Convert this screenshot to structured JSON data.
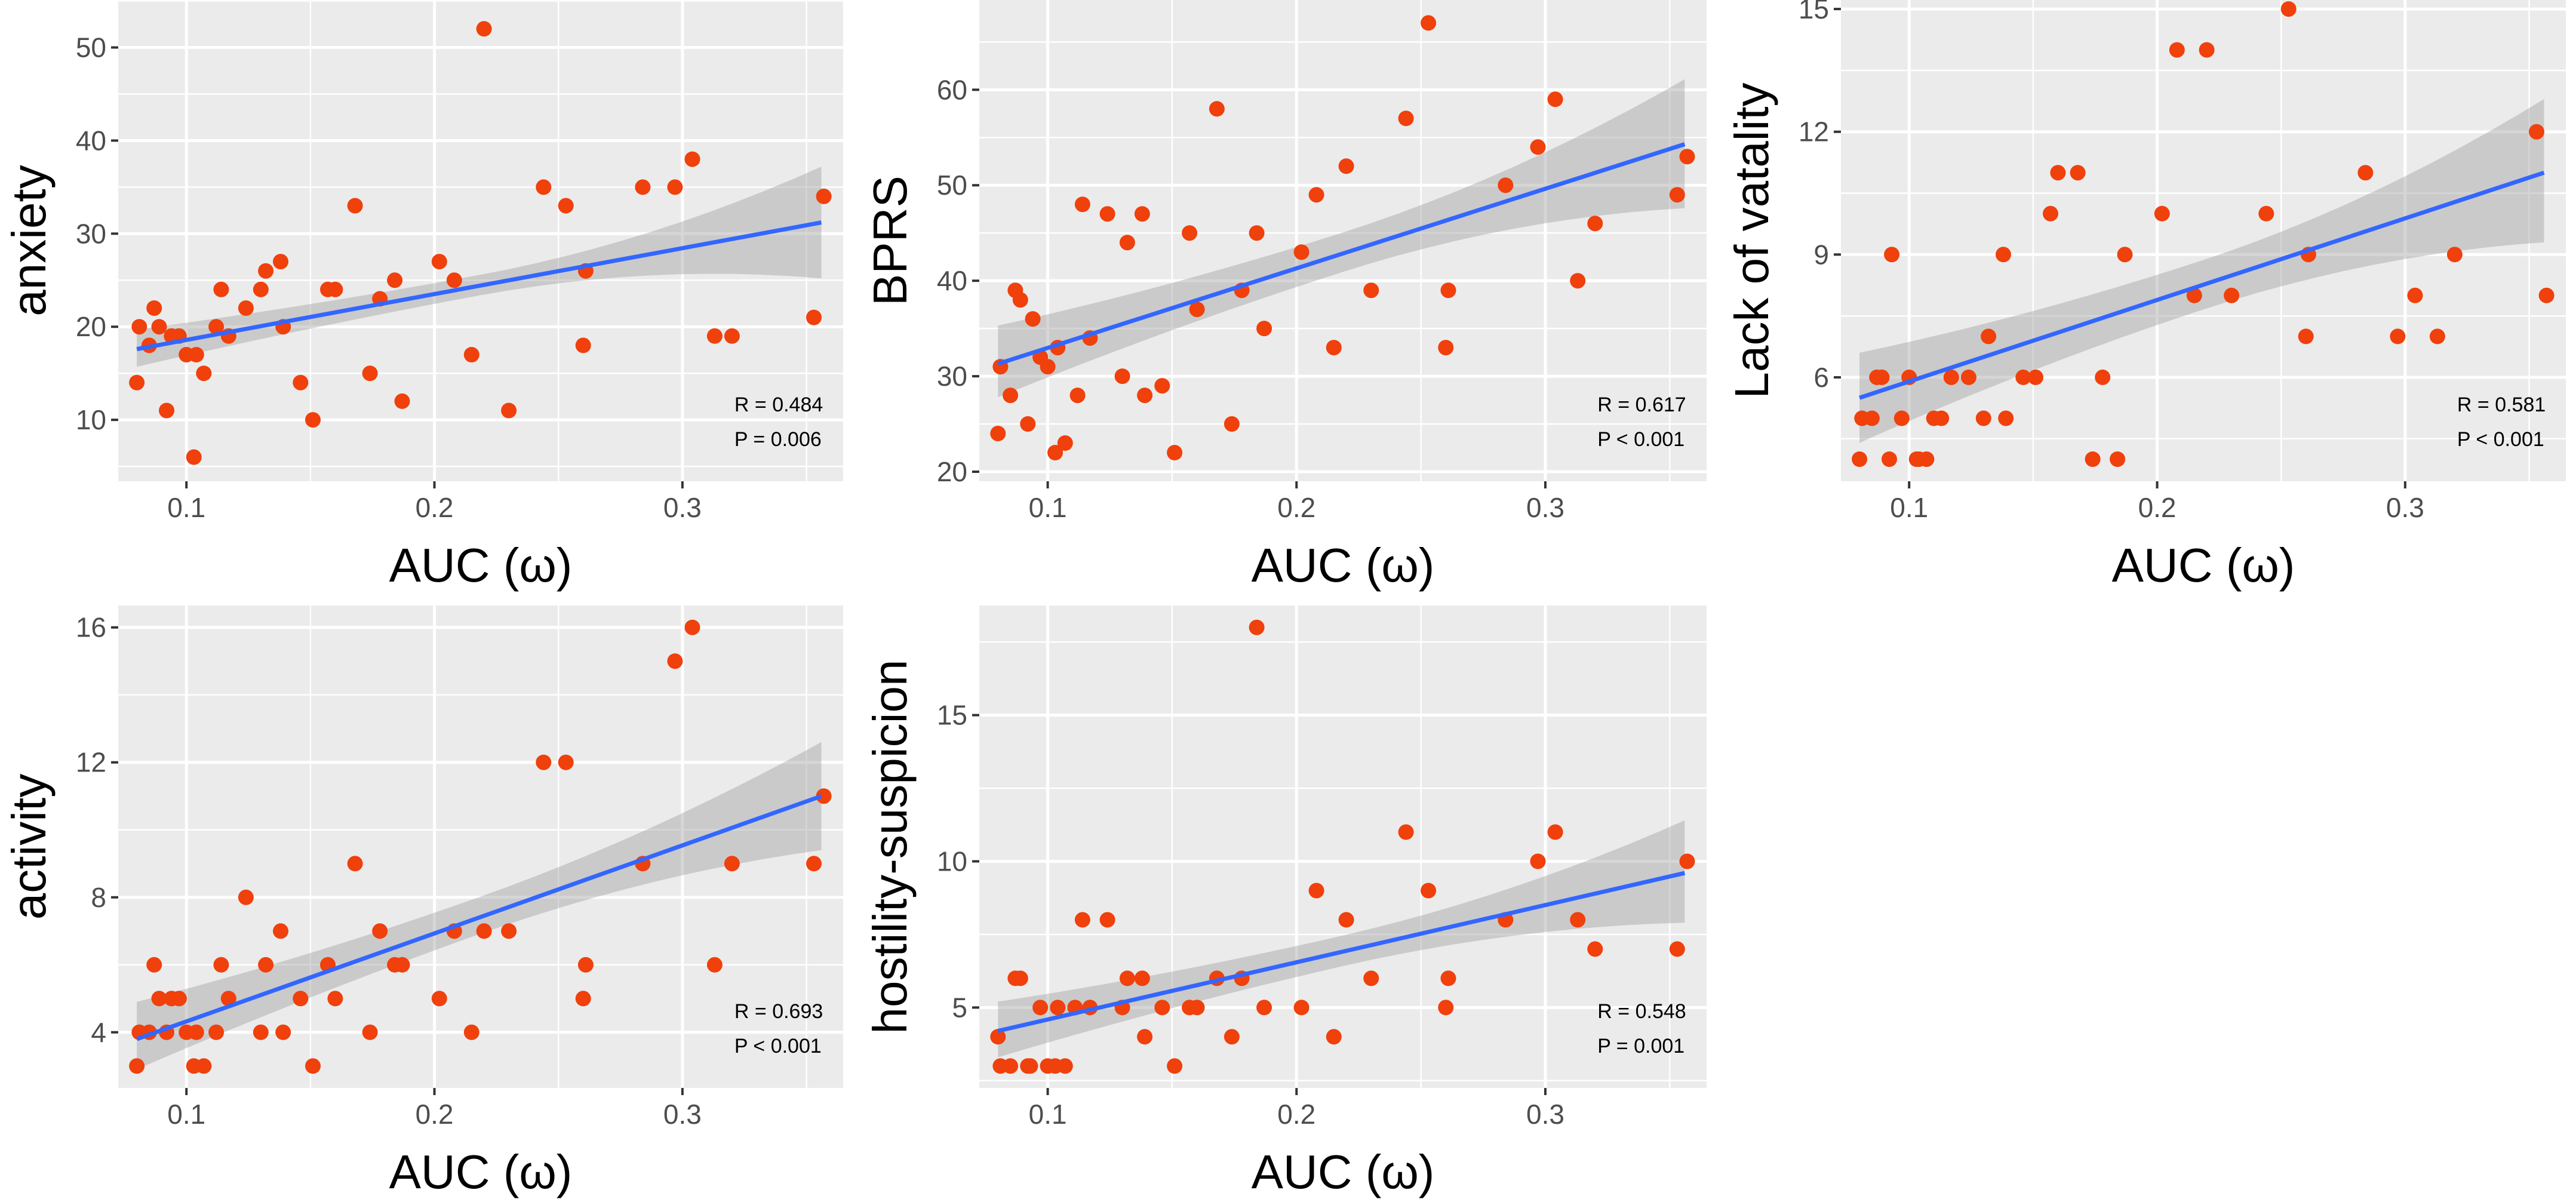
{
  "colors": {
    "panel": "#ebebeb",
    "grid": "#ffffff",
    "fit_line": "#3366ff",
    "confidence_band": "#999999",
    "points": "#f0400c",
    "text": "#000000",
    "tick_text": "#4d4d4d"
  },
  "chart_data": [
    {
      "type": "scatter",
      "title": "",
      "xlabel": "AUC (ω)",
      "ylabel": "anxiety",
      "xlim": [
        0.0725,
        0.3648
      ],
      "ylim": [
        3.4,
        55.1
      ],
      "xticks": [
        0.1,
        0.2,
        0.3
      ],
      "xtick_labels": [
        "0.1",
        "0.2",
        "0.3"
      ],
      "yticks": [
        10,
        20,
        30,
        40,
        50
      ],
      "ytick_labels": [
        "10",
        "20",
        "30",
        "40",
        "50"
      ],
      "annotation": [
        "R = 0.484",
        "P = 0.006"
      ],
      "fit": {
        "x": [
          0.08,
          0.356
        ],
        "y": [
          17.6,
          31.2
        ],
        "ci_lower": [
          15.7,
          25.2
        ],
        "ci_upper": [
          19.7,
          37.2
        ]
      },
      "points": [
        {
          "x": 0.08,
          "y": 14
        },
        {
          "x": 0.081,
          "y": 20
        },
        {
          "x": 0.085,
          "y": 18
        },
        {
          "x": 0.087,
          "y": 22
        },
        {
          "x": 0.089,
          "y": 20
        },
        {
          "x": 0.092,
          "y": 11
        },
        {
          "x": 0.094,
          "y": 19
        },
        {
          "x": 0.097,
          "y": 19
        },
        {
          "x": 0.1,
          "y": 17
        },
        {
          "x": 0.103,
          "y": 6
        },
        {
          "x": 0.104,
          "y": 17
        },
        {
          "x": 0.107,
          "y": 15
        },
        {
          "x": 0.112,
          "y": 20
        },
        {
          "x": 0.114,
          "y": 24
        },
        {
          "x": 0.117,
          "y": 19
        },
        {
          "x": 0.124,
          "y": 22
        },
        {
          "x": 0.13,
          "y": 24
        },
        {
          "x": 0.132,
          "y": 26
        },
        {
          "x": 0.138,
          "y": 27
        },
        {
          "x": 0.139,
          "y": 20
        },
        {
          "x": 0.146,
          "y": 14
        },
        {
          "x": 0.151,
          "y": 10
        },
        {
          "x": 0.157,
          "y": 24
        },
        {
          "x": 0.16,
          "y": 24
        },
        {
          "x": 0.168,
          "y": 33
        },
        {
          "x": 0.174,
          "y": 15
        },
        {
          "x": 0.178,
          "y": 23
        },
        {
          "x": 0.184,
          "y": 25
        },
        {
          "x": 0.187,
          "y": 12
        },
        {
          "x": 0.202,
          "y": 27
        },
        {
          "x": 0.208,
          "y": 25
        },
        {
          "x": 0.215,
          "y": 17
        },
        {
          "x": 0.22,
          "y": 52
        },
        {
          "x": 0.23,
          "y": 11
        },
        {
          "x": 0.244,
          "y": 35
        },
        {
          "x": 0.253,
          "y": 33
        },
        {
          "x": 0.26,
          "y": 18
        },
        {
          "x": 0.261,
          "y": 26
        },
        {
          "x": 0.284,
          "y": 35
        },
        {
          "x": 0.297,
          "y": 35
        },
        {
          "x": 0.304,
          "y": 38
        },
        {
          "x": 0.313,
          "y": 19
        },
        {
          "x": 0.32,
          "y": 19
        },
        {
          "x": 0.353,
          "y": 21
        },
        {
          "x": 0.357,
          "y": 34
        }
      ]
    },
    {
      "type": "scatter",
      "title": "",
      "xlabel": "AUC (ω)",
      "ylabel": "BPRS",
      "xlim": [
        0.0725,
        0.3648
      ],
      "ylim": [
        19.0,
        69.4
      ],
      "xticks": [
        0.1,
        0.2,
        0.3
      ],
      "xtick_labels": [
        "0.1",
        "0.2",
        "0.3"
      ],
      "yticks": [
        20,
        30,
        40,
        50,
        60
      ],
      "ytick_labels": [
        "20",
        "30",
        "40",
        "50",
        "60"
      ],
      "annotation": [
        "R = 0.617",
        "P < 0.001"
      ],
      "fit": {
        "x": [
          0.08,
          0.356
        ],
        "y": [
          31.3,
          54.3
        ],
        "ci_lower": [
          27.8,
          47.6
        ],
        "ci_upper": [
          35.3,
          61.1
        ]
      },
      "points": [
        {
          "x": 0.08,
          "y": 24
        },
        {
          "x": 0.081,
          "y": 31
        },
        {
          "x": 0.085,
          "y": 28
        },
        {
          "x": 0.087,
          "y": 39
        },
        {
          "x": 0.089,
          "y": 38
        },
        {
          "x": 0.092,
          "y": 25
        },
        {
          "x": 0.094,
          "y": 36
        },
        {
          "x": 0.097,
          "y": 32
        },
        {
          "x": 0.1,
          "y": 31
        },
        {
          "x": 0.103,
          "y": 22
        },
        {
          "x": 0.104,
          "y": 33
        },
        {
          "x": 0.107,
          "y": 23
        },
        {
          "x": 0.112,
          "y": 28
        },
        {
          "x": 0.114,
          "y": 48
        },
        {
          "x": 0.117,
          "y": 34
        },
        {
          "x": 0.124,
          "y": 47
        },
        {
          "x": 0.13,
          "y": 30
        },
        {
          "x": 0.132,
          "y": 44
        },
        {
          "x": 0.138,
          "y": 47
        },
        {
          "x": 0.139,
          "y": 28
        },
        {
          "x": 0.146,
          "y": 29
        },
        {
          "x": 0.151,
          "y": 22
        },
        {
          "x": 0.157,
          "y": 45
        },
        {
          "x": 0.16,
          "y": 37
        },
        {
          "x": 0.168,
          "y": 58
        },
        {
          "x": 0.174,
          "y": 25
        },
        {
          "x": 0.178,
          "y": 39
        },
        {
          "x": 0.184,
          "y": 45
        },
        {
          "x": 0.187,
          "y": 35
        },
        {
          "x": 0.202,
          "y": 43
        },
        {
          "x": 0.208,
          "y": 49
        },
        {
          "x": 0.215,
          "y": 33
        },
        {
          "x": 0.22,
          "y": 52
        },
        {
          "x": 0.23,
          "y": 39
        },
        {
          "x": 0.244,
          "y": 57
        },
        {
          "x": 0.253,
          "y": 67
        },
        {
          "x": 0.26,
          "y": 33
        },
        {
          "x": 0.261,
          "y": 39
        },
        {
          "x": 0.284,
          "y": 50
        },
        {
          "x": 0.297,
          "y": 54
        },
        {
          "x": 0.304,
          "y": 59
        },
        {
          "x": 0.313,
          "y": 40
        },
        {
          "x": 0.32,
          "y": 46
        },
        {
          "x": 0.353,
          "y": 49
        },
        {
          "x": 0.357,
          "y": 53
        }
      ]
    },
    {
      "type": "scatter",
      "title": "",
      "xlabel": "AUC (ω)",
      "ylabel": "Lack of vatality",
      "xlim": [
        0.0725,
        0.3648
      ],
      "ylim": [
        3.46,
        15.22
      ],
      "xticks": [
        0.1,
        0.2,
        0.3
      ],
      "xtick_labels": [
        "0.1",
        "0.2",
        "0.3"
      ],
      "yticks": [
        6,
        9,
        12,
        15
      ],
      "ytick_labels": [
        "6",
        "9",
        "12",
        "15"
      ],
      "annotation": [
        "R = 0.581",
        "P < 0.001"
      ],
      "fit": {
        "x": [
          0.08,
          0.356
        ],
        "y": [
          5.5,
          11.0
        ],
        "ci_lower": [
          4.4,
          9.3
        ],
        "ci_upper": [
          6.6,
          12.8
        ]
      },
      "points": [
        {
          "x": 0.08,
          "y": 4
        },
        {
          "x": 0.081,
          "y": 5
        },
        {
          "x": 0.085,
          "y": 5
        },
        {
          "x": 0.087,
          "y": 6
        },
        {
          "x": 0.089,
          "y": 6
        },
        {
          "x": 0.092,
          "y": 4
        },
        {
          "x": 0.093,
          "y": 9
        },
        {
          "x": 0.097,
          "y": 5
        },
        {
          "x": 0.1,
          "y": 6
        },
        {
          "x": 0.103,
          "y": 4
        },
        {
          "x": 0.104,
          "y": 4
        },
        {
          "x": 0.107,
          "y": 4
        },
        {
          "x": 0.11,
          "y": 5
        },
        {
          "x": 0.113,
          "y": 5
        },
        {
          "x": 0.117,
          "y": 6
        },
        {
          "x": 0.124,
          "y": 6
        },
        {
          "x": 0.13,
          "y": 5
        },
        {
          "x": 0.132,
          "y": 7
        },
        {
          "x": 0.138,
          "y": 9
        },
        {
          "x": 0.139,
          "y": 5
        },
        {
          "x": 0.146,
          "y": 6
        },
        {
          "x": 0.151,
          "y": 6
        },
        {
          "x": 0.157,
          "y": 10
        },
        {
          "x": 0.16,
          "y": 11
        },
        {
          "x": 0.168,
          "y": 11
        },
        {
          "x": 0.174,
          "y": 4
        },
        {
          "x": 0.178,
          "y": 6
        },
        {
          "x": 0.184,
          "y": 4
        },
        {
          "x": 0.187,
          "y": 9
        },
        {
          "x": 0.202,
          "y": 10
        },
        {
          "x": 0.208,
          "y": 14
        },
        {
          "x": 0.215,
          "y": 8
        },
        {
          "x": 0.22,
          "y": 14
        },
        {
          "x": 0.23,
          "y": 8
        },
        {
          "x": 0.244,
          "y": 10
        },
        {
          "x": 0.253,
          "y": 15
        },
        {
          "x": 0.26,
          "y": 7
        },
        {
          "x": 0.261,
          "y": 9
        },
        {
          "x": 0.284,
          "y": 11
        },
        {
          "x": 0.297,
          "y": 7
        },
        {
          "x": 0.304,
          "y": 8
        },
        {
          "x": 0.313,
          "y": 7
        },
        {
          "x": 0.32,
          "y": 9
        },
        {
          "x": 0.353,
          "y": 12
        },
        {
          "x": 0.357,
          "y": 8
        }
      ]
    },
    {
      "type": "scatter",
      "title": "",
      "xlabel": "AUC (ω)",
      "ylabel": "activity",
      "xlim": [
        0.0725,
        0.3648
      ],
      "ylim": [
        2.35,
        16.65
      ],
      "xticks": [
        0.1,
        0.2,
        0.3
      ],
      "xtick_labels": [
        "0.1",
        "0.2",
        "0.3"
      ],
      "yticks": [
        4,
        8,
        12,
        16
      ],
      "ytick_labels": [
        "4",
        "8",
        "12",
        "16"
      ],
      "annotation": [
        "R = 0.693",
        "P < 0.001"
      ],
      "fit": {
        "x": [
          0.08,
          0.356
        ],
        "y": [
          3.8,
          11.0
        ],
        "ci_lower": [
          2.9,
          9.4
        ],
        "ci_upper": [
          4.9,
          12.6
        ]
      },
      "points": [
        {
          "x": 0.08,
          "y": 3
        },
        {
          "x": 0.081,
          "y": 4
        },
        {
          "x": 0.085,
          "y": 4
        },
        {
          "x": 0.087,
          "y": 6
        },
        {
          "x": 0.089,
          "y": 5
        },
        {
          "x": 0.092,
          "y": 4
        },
        {
          "x": 0.094,
          "y": 5
        },
        {
          "x": 0.097,
          "y": 5
        },
        {
          "x": 0.1,
          "y": 4
        },
        {
          "x": 0.103,
          "y": 3
        },
        {
          "x": 0.104,
          "y": 4
        },
        {
          "x": 0.107,
          "y": 3
        },
        {
          "x": 0.112,
          "y": 4
        },
        {
          "x": 0.114,
          "y": 6
        },
        {
          "x": 0.117,
          "y": 5
        },
        {
          "x": 0.124,
          "y": 8
        },
        {
          "x": 0.13,
          "y": 4
        },
        {
          "x": 0.132,
          "y": 6
        },
        {
          "x": 0.138,
          "y": 7
        },
        {
          "x": 0.139,
          "y": 4
        },
        {
          "x": 0.146,
          "y": 5
        },
        {
          "x": 0.151,
          "y": 3
        },
        {
          "x": 0.157,
          "y": 6
        },
        {
          "x": 0.16,
          "y": 5
        },
        {
          "x": 0.168,
          "y": 9
        },
        {
          "x": 0.174,
          "y": 4
        },
        {
          "x": 0.178,
          "y": 7
        },
        {
          "x": 0.184,
          "y": 6
        },
        {
          "x": 0.187,
          "y": 6
        },
        {
          "x": 0.202,
          "y": 5
        },
        {
          "x": 0.208,
          "y": 7
        },
        {
          "x": 0.215,
          "y": 4
        },
        {
          "x": 0.22,
          "y": 7
        },
        {
          "x": 0.23,
          "y": 7
        },
        {
          "x": 0.244,
          "y": 12
        },
        {
          "x": 0.253,
          "y": 12
        },
        {
          "x": 0.26,
          "y": 5
        },
        {
          "x": 0.261,
          "y": 6
        },
        {
          "x": 0.284,
          "y": 9
        },
        {
          "x": 0.297,
          "y": 15
        },
        {
          "x": 0.304,
          "y": 16
        },
        {
          "x": 0.313,
          "y": 6
        },
        {
          "x": 0.32,
          "y": 9
        },
        {
          "x": 0.353,
          "y": 9
        },
        {
          "x": 0.357,
          "y": 11
        }
      ]
    },
    {
      "type": "scatter",
      "title": "",
      "xlabel": "AUC (ω)",
      "ylabel": "hostility-suspicion",
      "xlim": [
        0.0725,
        0.3648
      ],
      "ylim": [
        2.25,
        18.75
      ],
      "xticks": [
        0.1,
        0.2,
        0.3
      ],
      "xtick_labels": [
        "0.1",
        "0.2",
        "0.3"
      ],
      "yticks": [
        5,
        10,
        15
      ],
      "ytick_labels": [
        "5",
        "10",
        "15"
      ],
      "annotation": [
        "R = 0.548",
        "P = 0.001"
      ],
      "fit": {
        "x": [
          0.08,
          0.356
        ],
        "y": [
          4.2,
          9.6
        ],
        "ci_lower": [
          3.3,
          7.9
        ],
        "ci_upper": [
          5.2,
          11.4
        ]
      },
      "points": [
        {
          "x": 0.08,
          "y": 4
        },
        {
          "x": 0.081,
          "y": 3
        },
        {
          "x": 0.085,
          "y": 3
        },
        {
          "x": 0.087,
          "y": 6
        },
        {
          "x": 0.089,
          "y": 6
        },
        {
          "x": 0.092,
          "y": 3
        },
        {
          "x": 0.093,
          "y": 3
        },
        {
          "x": 0.097,
          "y": 5
        },
        {
          "x": 0.1,
          "y": 3
        },
        {
          "x": 0.103,
          "y": 3
        },
        {
          "x": 0.104,
          "y": 5
        },
        {
          "x": 0.107,
          "y": 3
        },
        {
          "x": 0.111,
          "y": 5
        },
        {
          "x": 0.114,
          "y": 8
        },
        {
          "x": 0.117,
          "y": 5
        },
        {
          "x": 0.124,
          "y": 8
        },
        {
          "x": 0.13,
          "y": 5
        },
        {
          "x": 0.132,
          "y": 6
        },
        {
          "x": 0.138,
          "y": 6
        },
        {
          "x": 0.139,
          "y": 4
        },
        {
          "x": 0.146,
          "y": 5
        },
        {
          "x": 0.151,
          "y": 3
        },
        {
          "x": 0.157,
          "y": 5
        },
        {
          "x": 0.16,
          "y": 5
        },
        {
          "x": 0.168,
          "y": 6
        },
        {
          "x": 0.174,
          "y": 4
        },
        {
          "x": 0.178,
          "y": 6
        },
        {
          "x": 0.184,
          "y": 18
        },
        {
          "x": 0.187,
          "y": 5
        },
        {
          "x": 0.202,
          "y": 5
        },
        {
          "x": 0.208,
          "y": 9
        },
        {
          "x": 0.215,
          "y": 4
        },
        {
          "x": 0.22,
          "y": 8
        },
        {
          "x": 0.23,
          "y": 6
        },
        {
          "x": 0.244,
          "y": 11
        },
        {
          "x": 0.253,
          "y": 9
        },
        {
          "x": 0.26,
          "y": 5
        },
        {
          "x": 0.261,
          "y": 6
        },
        {
          "x": 0.284,
          "y": 8
        },
        {
          "x": 0.297,
          "y": 10
        },
        {
          "x": 0.304,
          "y": 11
        },
        {
          "x": 0.313,
          "y": 8
        },
        {
          "x": 0.32,
          "y": 7
        },
        {
          "x": 0.353,
          "y": 7
        },
        {
          "x": 0.357,
          "y": 10
        }
      ]
    }
  ]
}
